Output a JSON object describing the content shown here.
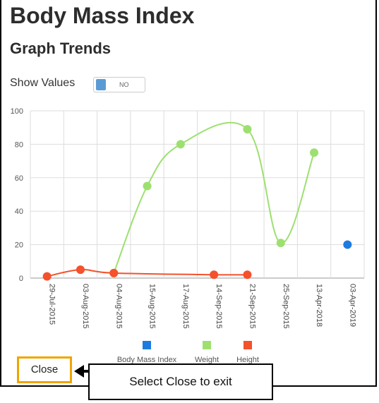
{
  "header": {
    "title": "Body Mass Index",
    "subtitle": "Graph Trends"
  },
  "controls": {
    "show_values_label": "Show Values",
    "toggle_state": "NO"
  },
  "chart_data": {
    "type": "line",
    "categories": [
      "29-Jul-2015",
      "03-Aug-2015",
      "04-Aug-2015",
      "15-Aug-2015",
      "17-Aug-2015",
      "14-Sep-2015",
      "21-Sep-2015",
      "25-Sep-2015",
      "13-Apr-2018",
      "03-Apr-2019"
    ],
    "ylim": [
      0,
      100
    ],
    "yticks": [
      0,
      20,
      40,
      60,
      80,
      100
    ],
    "grid": true,
    "legend_position": "bottom",
    "series": [
      {
        "name": "Body Mass Index",
        "color": "#1e7be0",
        "smooth": false,
        "values": [
          null,
          null,
          null,
          null,
          null,
          null,
          null,
          null,
          null,
          20
        ]
      },
      {
        "name": "Weight",
        "color": "#9de070",
        "smooth": true,
        "values": [
          null,
          null,
          3,
          55,
          80,
          null,
          89,
          21,
          75,
          null
        ]
      },
      {
        "name": "Height",
        "color": "#f4512c",
        "smooth": true,
        "values": [
          1,
          5,
          3,
          null,
          null,
          2,
          2,
          null,
          null,
          null
        ]
      }
    ]
  },
  "footer": {
    "close_label": "Close",
    "callout_text": "Select Close to exit"
  }
}
